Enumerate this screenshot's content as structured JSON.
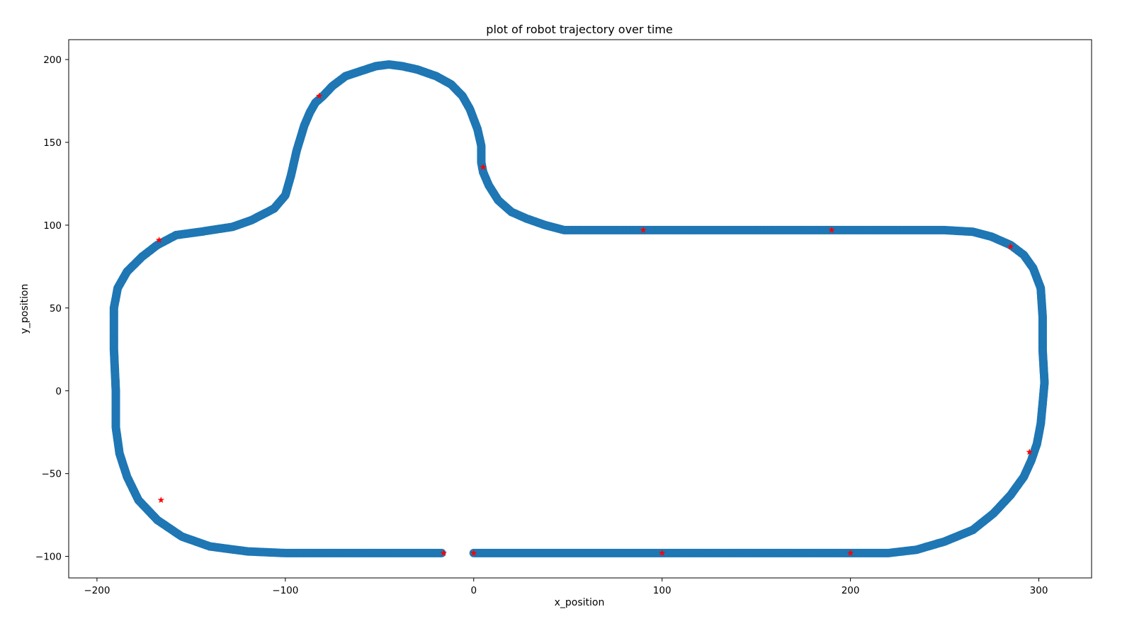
{
  "chart_data": {
    "type": "scatter",
    "title": "plot of robot trajectory over time",
    "xlabel": "x_position",
    "ylabel": "y_position",
    "xlim": [
      -215,
      328
    ],
    "ylim": [
      -113,
      212
    ],
    "xticks": [
      -200,
      -100,
      0,
      100,
      200,
      300
    ],
    "xtick_labels": [
      "−200",
      "−100",
      "0",
      "100",
      "200",
      "300"
    ],
    "yticks": [
      -100,
      -50,
      0,
      50,
      100,
      150,
      200
    ],
    "ytick_labels": [
      "−100",
      "−50",
      "0",
      "50",
      "100",
      "150",
      "200"
    ],
    "grid": false,
    "legend": "none",
    "series": [
      {
        "marker": "circle",
        "color": "#1f77b4",
        "x": [
          -17,
          -60,
          -100,
          -120,
          -140,
          -155,
          -168,
          -178,
          -184,
          -188,
          -190,
          -190,
          -190,
          -191,
          -191,
          -189,
          -184,
          -176,
          -168,
          -158,
          -145,
          -128,
          -118,
          -106,
          -100,
          -97,
          -94,
          -90,
          -87,
          -84,
          -80,
          -75,
          -68,
          -60,
          -52,
          -45,
          -38,
          -30,
          -20,
          -12,
          -6,
          -2,
          2,
          4,
          4,
          5,
          8,
          13,
          20,
          28,
          38,
          48,
          90,
          150,
          190,
          250,
          265,
          275,
          285,
          292,
          297,
          301,
          302,
          302,
          303,
          302,
          301,
          299,
          296,
          292,
          285,
          276,
          265,
          250,
          235,
          220,
          210,
          200,
          150,
          100,
          0
        ],
        "y": [
          -98,
          -98,
          -98,
          -97,
          -94,
          -88,
          -78,
          -66,
          -52,
          -38,
          -22,
          -10,
          0,
          25,
          50,
          62,
          72,
          81,
          88,
          94,
          96,
          99,
          103,
          110,
          118,
          130,
          145,
          160,
          168,
          174,
          178,
          184,
          190,
          193,
          196,
          197,
          196,
          194,
          190,
          185,
          178,
          170,
          158,
          148,
          138,
          132,
          124,
          115,
          108,
          104,
          100,
          97,
          97,
          97,
          97,
          97,
          96,
          93,
          88,
          82,
          74,
          62,
          45,
          25,
          5,
          -8,
          -20,
          -32,
          -42,
          -52,
          -63,
          -74,
          -84,
          -91,
          -96,
          -98,
          -98,
          -98,
          -98,
          -98,
          -98
        ]
      },
      {
        "marker": "star",
        "color": "#ff0000",
        "x": [
          -16,
          0,
          100,
          200,
          295,
          285,
          190,
          90,
          5,
          -82,
          -167,
          -166
        ],
        "y": [
          -98,
          -98,
          -98,
          -98,
          -37,
          87,
          97,
          97,
          135,
          178,
          91,
          -66
        ]
      }
    ]
  }
}
